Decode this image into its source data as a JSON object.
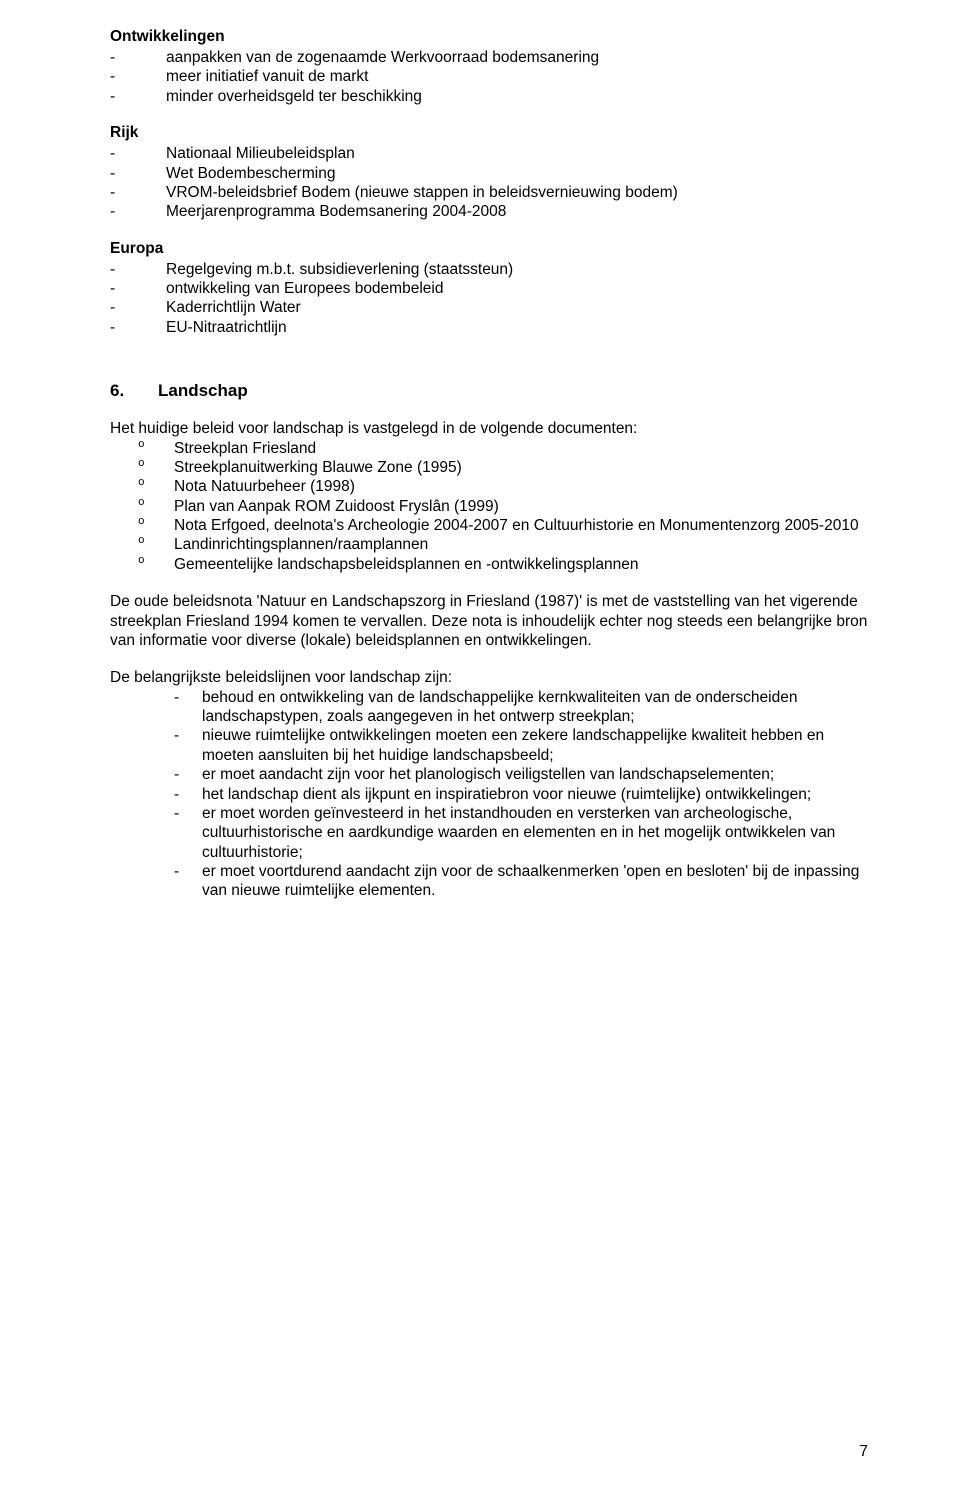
{
  "ontwikkelingen": {
    "heading": "Ontwikkelingen",
    "items": [
      "aanpakken van de zogenaamde Werkvoorraad bodemsanering",
      "meer initiatief vanuit de markt",
      "minder overheidsgeld ter beschikking"
    ]
  },
  "rijk": {
    "heading": "Rijk",
    "items": [
      "Nationaal Milieubeleidsplan",
      "Wet Bodembescherming",
      "VROM-beleidsbrief Bodem (nieuwe stappen in  beleidsvernieuwing bodem)",
      "Meerjarenprogramma Bodemsanering 2004-2008"
    ]
  },
  "europa": {
    "heading": "Europa",
    "items": [
      "Regelgeving m.b.t. subsidieverlening (staatssteun)",
      "ontwikkeling van Europees bodembeleid",
      "Kaderrichtlijn Water",
      "EU-Nitraatrichtlijn"
    ]
  },
  "section6": {
    "number": "6.",
    "title": "Landschap",
    "intro": "Het huidige beleid voor landschap is vastgelegd in de volgende documenten:",
    "docs": [
      "Streekplan Friesland",
      "Streekplanuitwerking Blauwe Zone (1995)",
      "Nota Natuurbeheer (1998)",
      "Plan van Aanpak ROM Zuidoost Fryslân (1999)",
      "Nota Erfgoed, deelnota's Archeologie 2004-2007 en Cultuurhistorie en Monumentenzorg 2005-2010",
      "Landinrichtingsplannen/raamplannen",
      "Gemeentelijke landschapsbeleidsplannen en -ontwikkelingsplannen"
    ],
    "para1": "De oude beleidsnota 'Natuur en Landschapszorg in Friesland (1987)' is met de vaststelling van het vigerende streekplan Friesland 1994 komen te vervallen. Deze nota is inhoudelijk echter nog steeds een belangrijke bron van informatie voor diverse (lokale) beleidsplannen en ontwikkelingen.",
    "lines_intro": "De belangrijkste beleidslijnen voor landschap zijn:",
    "lines": [
      "behoud en ontwikkeling van de landschappelijke kernkwaliteiten van de onderscheiden landschapstypen, zoals aangegeven in het ontwerp streekplan;",
      "nieuwe ruimtelijke ontwikkelingen moeten een zekere landschappelijke kwaliteit hebben en moeten aansluiten bij het huidige landschapsbeeld;",
      "er moet aandacht zijn voor het planologisch veiligstellen van landschapselementen;",
      "het landschap dient als ijkpunt en inspiratiebron voor nieuwe (ruimtelijke) ontwikkelingen;",
      "er moet worden geïnvesteerd in het instandhouden en versterken van archeologische, cultuurhistorische en aardkundige waarden en elementen en in het mogelijk ontwikkelen van cultuurhistorie;",
      "er moet voortdurend aandacht zijn voor de schaalkenmerken 'open en besloten' bij de inpassing van nieuwe ruimtelijke elementen."
    ]
  },
  "page_number": "7"
}
